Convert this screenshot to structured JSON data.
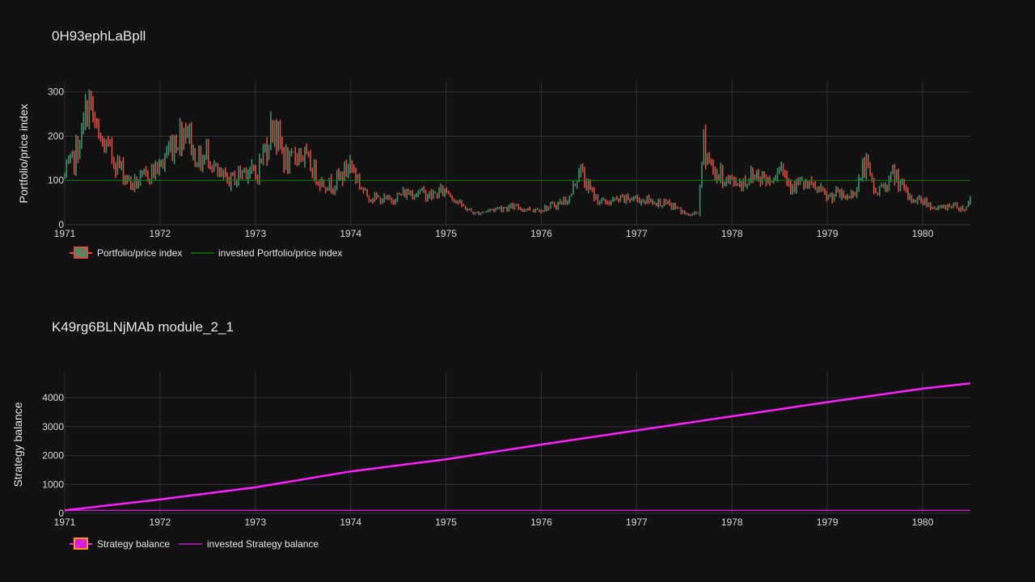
{
  "colors": {
    "background": "#111111",
    "grid": "#2e323b",
    "candle_up": "#3d8f6a",
    "candle_down": "#e2483d",
    "invested_line_1": "#0b7a0b",
    "balance": "#ff22ff",
    "invested_line_2": "#c020c0",
    "legend_box_2_fill": "#d81ad8",
    "legend_box_2_border": "#ff9900"
  },
  "chart_data": [
    {
      "type": "candlestick",
      "title": "0H93ephLaBpll",
      "ylabel": "Portfolio/price index",
      "xlabel": "",
      "x_ticks": [
        "1971",
        "1972",
        "1973",
        "1974",
        "1975",
        "1976",
        "1977",
        "1978",
        "1979",
        "1980"
      ],
      "y_ticks": [
        "0",
        "100",
        "200",
        "300"
      ],
      "xlim": [
        1971.0,
        1980.5
      ],
      "ylim": [
        0,
        325
      ],
      "grid": true,
      "legend": [
        "Portfolio/price index",
        "invested Portfolio/price index"
      ],
      "legend_placement": "bottom-left",
      "invested_value": 100,
      "series": [
        {
          "name": "Portfolio/price index",
          "x": [
            1971.0,
            1971.1,
            1971.2,
            1971.25,
            1971.35,
            1971.45,
            1971.55,
            1971.7,
            1971.8,
            1971.9,
            1972.0,
            1972.1,
            1972.2,
            1972.28,
            1972.35,
            1972.45,
            1972.5,
            1972.6,
            1972.7,
            1972.8,
            1972.9,
            1973.0,
            1973.1,
            1973.2,
            1973.22,
            1973.35,
            1973.45,
            1973.5,
            1973.6,
            1973.7,
            1973.8,
            1973.9,
            1974.0,
            1974.1,
            1974.15,
            1974.25,
            1974.4,
            1974.55,
            1974.7,
            1974.85,
            1975.0,
            1975.15,
            1975.3,
            1975.4,
            1975.55,
            1975.7,
            1975.85,
            1976.0,
            1976.15,
            1976.3,
            1976.4,
            1976.45,
            1976.55,
            1976.65,
            1976.8,
            1976.95,
            1977.1,
            1977.25,
            1977.4,
            1977.55,
            1977.65,
            1977.7,
            1977.8,
            1977.95,
            1978.1,
            1978.25,
            1978.4,
            1978.5,
            1978.6,
            1978.75,
            1978.9,
            1979.0,
            1979.1,
            1979.2,
            1979.3,
            1979.4,
            1979.5,
            1979.6,
            1979.7,
            1979.85,
            1980.0,
            1980.15,
            1980.3,
            1980.45,
            1980.5
          ],
          "y": [
            110,
            150,
            220,
            285,
            190,
            170,
            140,
            90,
            100,
            120,
            130,
            175,
            200,
            230,
            160,
            140,
            170,
            110,
            100,
            105,
            130,
            110,
            170,
            240,
            200,
            130,
            170,
            155,
            125,
            95,
            90,
            110,
            140,
            90,
            70,
            60,
            55,
            70,
            75,
            65,
            80,
            45,
            25,
            30,
            38,
            40,
            35,
            35,
            45,
            60,
            130,
            100,
            65,
            50,
            55,
            60,
            55,
            50,
            40,
            20,
            30,
            190,
            120,
            100,
            95,
            115,
            100,
            140,
            95,
            90,
            80,
            60,
            70,
            60,
            80,
            140,
            70,
            90,
            115,
            60,
            55,
            35,
            45,
            35,
            60
          ]
        }
      ]
    },
    {
      "type": "line",
      "title": "K49rg6BLNjMAb module_2_1",
      "ylabel": "Strategy balance",
      "xlabel": "",
      "x_ticks": [
        "1971",
        "1972",
        "1973",
        "1974",
        "1975",
        "1976",
        "1977",
        "1978",
        "1979",
        "1980"
      ],
      "y_ticks": [
        "0",
        "1000",
        "2000",
        "3000",
        "4000"
      ],
      "xlim": [
        1971.0,
        1980.5
      ],
      "ylim": [
        0,
        4900
      ],
      "grid": true,
      "legend": [
        "Strategy balance",
        "invested Strategy balance"
      ],
      "legend_placement": "bottom-left",
      "invested_value": 100,
      "series": [
        {
          "name": "Strategy balance",
          "x": [
            1971.0,
            1972.0,
            1973.0,
            1974.0,
            1975.0,
            1976.0,
            1977.0,
            1978.0,
            1979.0,
            1980.0,
            1980.5
          ],
          "y": [
            100,
            480,
            900,
            1450,
            1870,
            2380,
            2870,
            3360,
            3850,
            4320,
            4500
          ]
        }
      ]
    }
  ]
}
